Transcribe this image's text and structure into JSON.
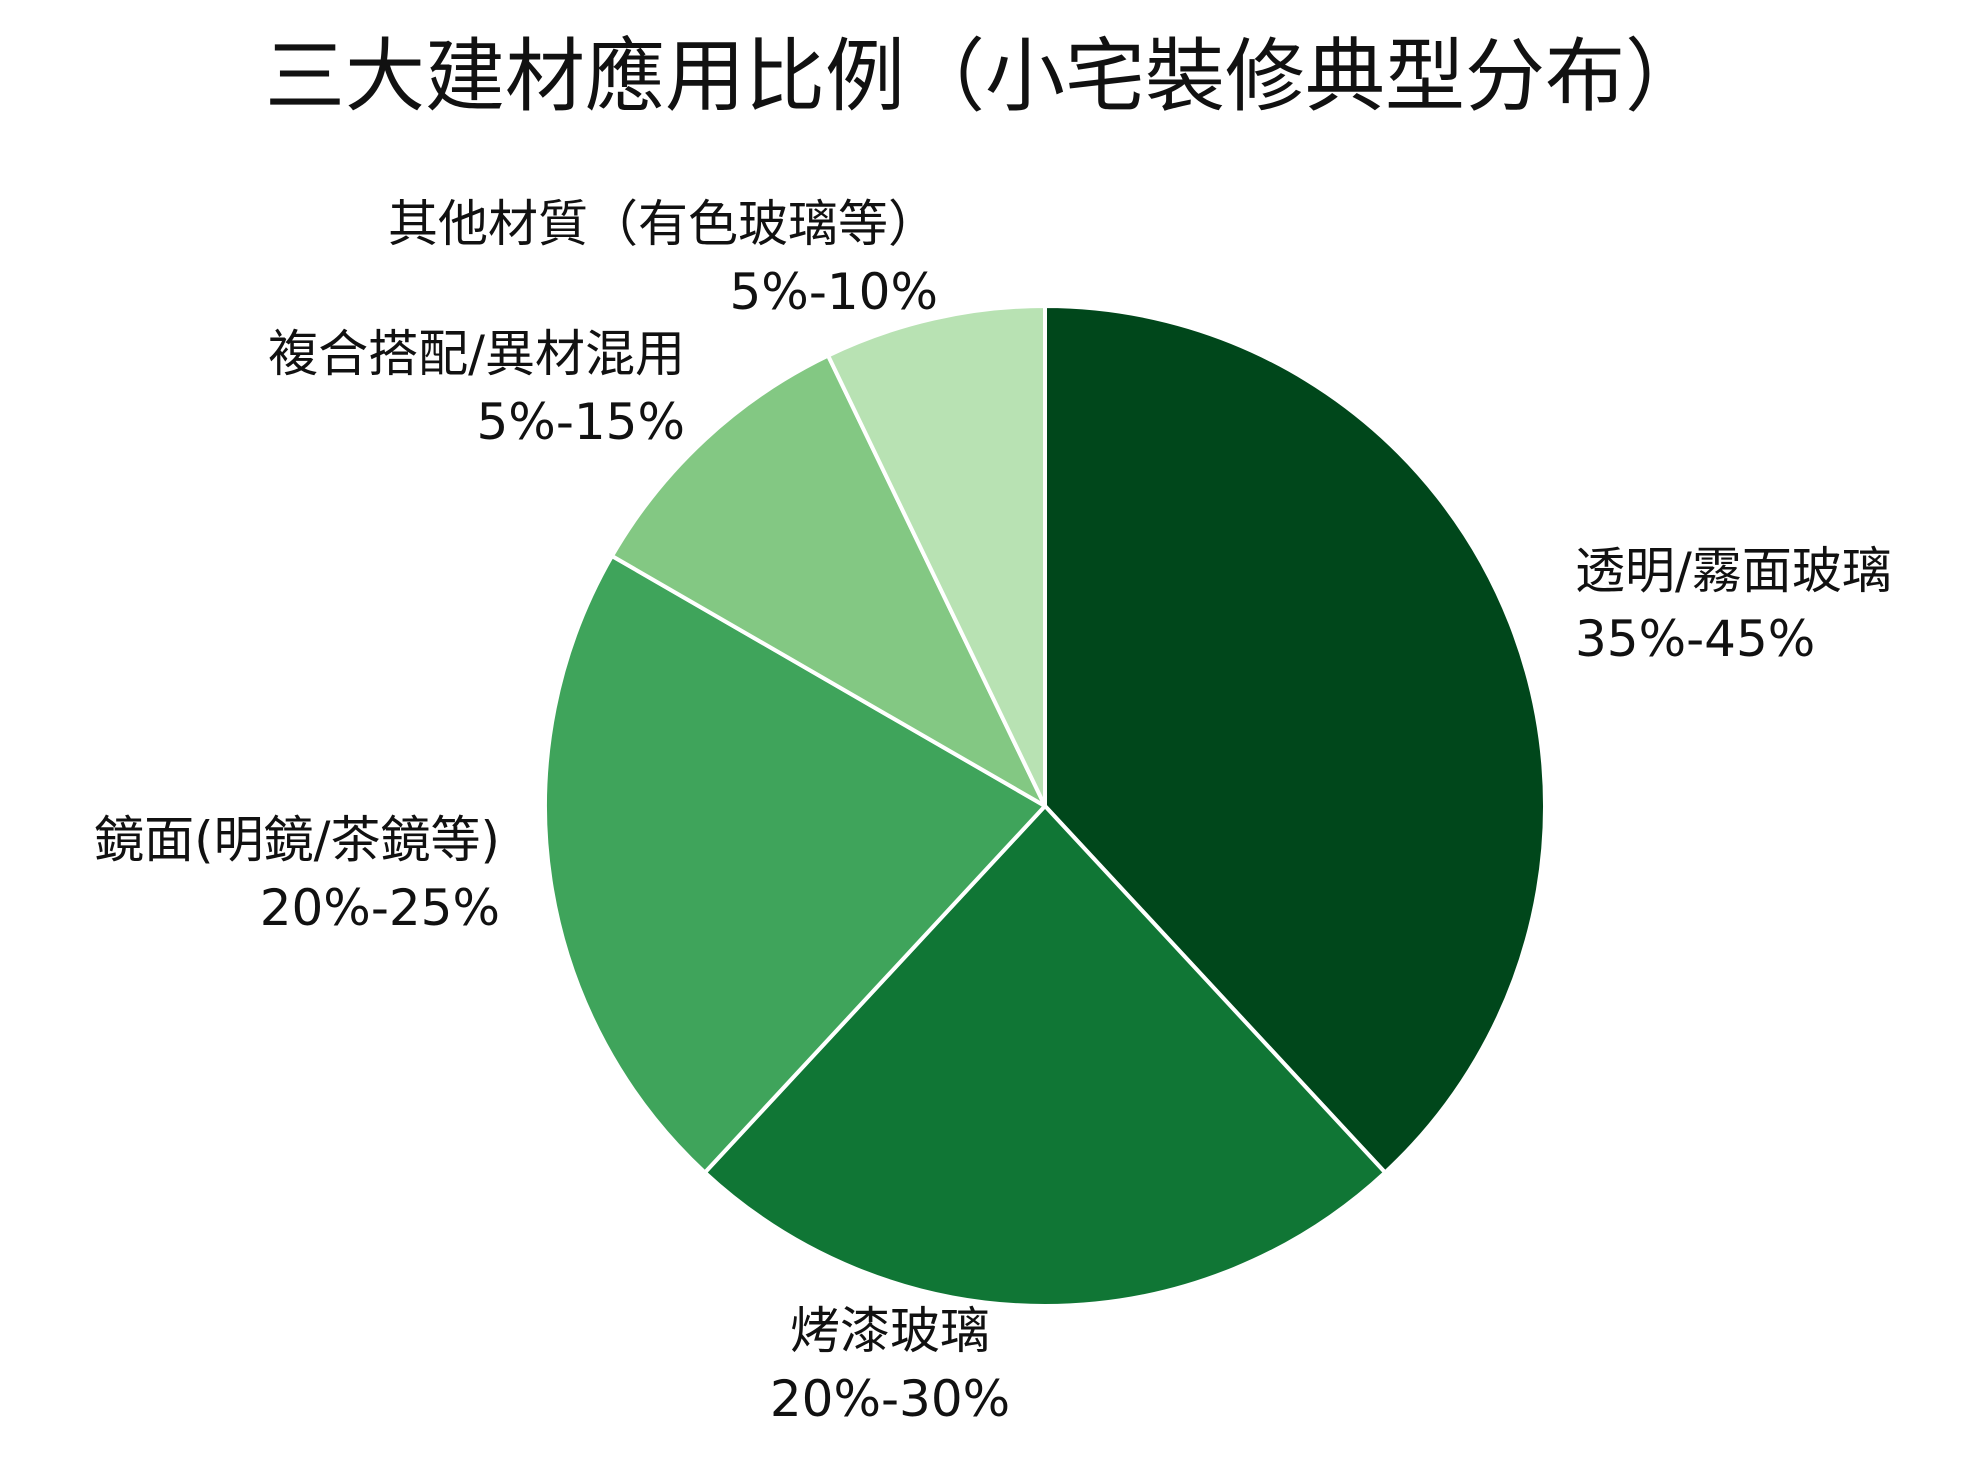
{
  "chart_data": {
    "type": "pie",
    "title": "三大建材應用比例（小宅裝修典型分布）",
    "start_angle_deg": 90,
    "direction": "clockwise",
    "slices": [
      {
        "label": "透明/霧面玻璃",
        "range_text": "35%-45%",
        "value": 40,
        "color": "#00471b"
      },
      {
        "label": "烤漆玻璃",
        "range_text": "20%-30%",
        "value": 25,
        "color": "#107635"
      },
      {
        "label": "鏡面(明鏡/茶鏡等)",
        "range_text": "20%-25%",
        "value": 22.5,
        "color": "#3fa45b"
      },
      {
        "label": "複合搭配/異材混用",
        "range_text": "5%-15%",
        "value": 10,
        "color": "#83c883"
      },
      {
        "label": "其他材質（有色玻璃等）",
        "range_text": "5%-10%",
        "value": 7.5,
        "color": "#b8e2b3"
      }
    ]
  }
}
